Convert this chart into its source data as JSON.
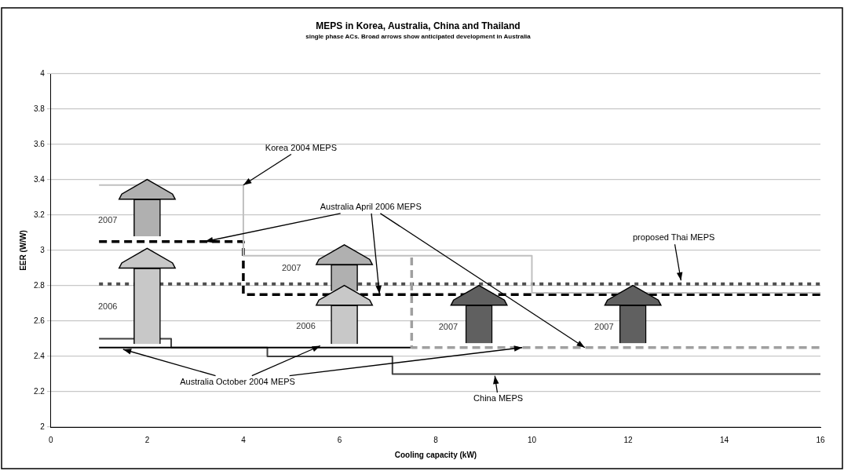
{
  "chart_data": {
    "type": "line",
    "title": "MEPS in Korea, Australia, China and Thailand",
    "subtitle": "single phase ACs. Broad arrows show anticipated development in Australia",
    "xlabel": "Cooling capacity (kW)",
    "ylabel": "EER (W/W)",
    "xlim": [
      0,
      16
    ],
    "xticks": [
      0,
      2,
      4,
      6,
      8,
      10,
      12,
      14,
      16
    ],
    "ylim": [
      2,
      4
    ],
    "yticks": [
      2,
      2.2,
      2.4,
      2.6,
      2.8,
      3,
      3.2,
      3.4,
      3.6,
      3.8,
      4
    ],
    "grid": "y",
    "legend": false,
    "marker": "none",
    "series": [
      {
        "color": "#c0c0c0",
        "line_style": "solid",
        "x": [
          1,
          4,
          4,
          10,
          10,
          16
        ],
        "values": [
          3.37,
          3.37,
          2.97,
          2.97,
          2.76,
          2.76
        ]
      },
      {
        "color": "#000000",
        "line_style": "dashed",
        "x": [
          1,
          4,
          4,
          16
        ],
        "values": [
          3.05,
          3.05,
          2.75,
          2.75
        ]
      },
      {
        "color": "#a0a0a0",
        "line_style": "dashed",
        "x": [
          7.5,
          7.5,
          16
        ],
        "values": [
          2.96,
          2.45,
          2.45
        ]
      },
      {
        "color": "#000000",
        "line_style": "solid",
        "x": [
          1,
          7.5
        ],
        "values": [
          2.45,
          2.45
        ]
      },
      {
        "color": "#404040",
        "line_style": "solid",
        "x": [
          1,
          2.5,
          2.5,
          4.5,
          4.5,
          7.1,
          7.1,
          16
        ],
        "values": [
          2.5,
          2.5,
          2.45,
          2.45,
          2.4,
          2.4,
          2.3,
          2.3
        ]
      },
      {
        "color": "#505050",
        "line_style": "dotted",
        "x": [
          1,
          16
        ],
        "values": [
          2.81,
          2.81
        ]
      },
      {
        "type": "bar",
        "x": [
          2,
          6.1,
          8.9,
          12.1
        ],
        "base": [
          2.47,
          2.47,
          2.475,
          2.475
        ],
        "values": [
          0.43,
          0.22,
          0.215,
          0.215
        ],
        "colors": [
          "#c8c8c8",
          "#c8c8c8",
          "#606060",
          "#606060"
        ]
      },
      {
        "type": "bar",
        "x": [
          2,
          6.1
        ],
        "base": [
          3.08,
          2.77
        ],
        "values": [
          0.21,
          0.15
        ],
        "colors": [
          "#b0b0b0",
          "#b0b0b0"
        ]
      }
    ],
    "annotations": [
      {
        "text": "Korea 2004 MEPS",
        "x": 4,
        "y": 3.37
      },
      {
        "text": "Australia April 2006 MEPS",
        "x": 3.2,
        "y": 3.05
      },
      {
        "text": "proposed Thai MEPS",
        "x": 13.1,
        "y": 2.83
      },
      {
        "text": "Australia October 2004 MEPS",
        "x": 1.5,
        "y": 2.44
      },
      {
        "text": "China MEPS",
        "x": 9.23,
        "y": 2.29
      },
      "2007",
      "2006",
      "2007",
      "2006",
      "2007",
      "2007"
    ]
  }
}
